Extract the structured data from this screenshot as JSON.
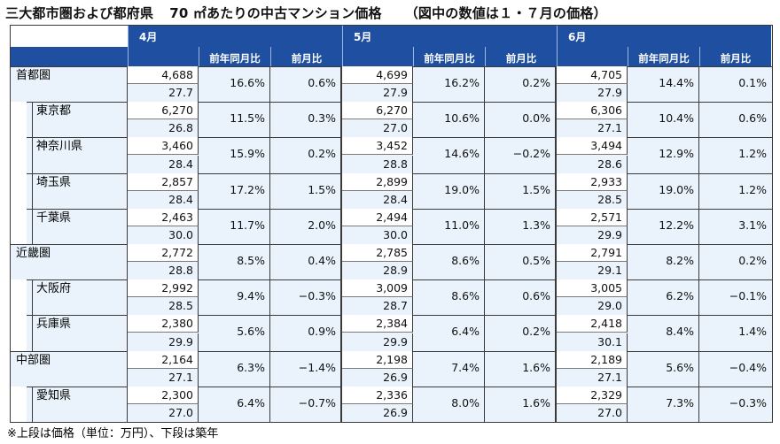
{
  "title": {
    "part1": "三大都市圏および都府県",
    "part2": "70 ㎡あたりの中古マンション価格",
    "part3": "（図中の数値は１・７月の価格）"
  },
  "months": [
    "4月",
    "5月",
    "6月"
  ],
  "subheaders": {
    "yoy": "前年同月比",
    "mom": "前月比"
  },
  "rows": [
    {
      "name": "首都圏",
      "level": 0,
      "months": [
        {
          "price": "4,688",
          "age": "27.7",
          "yoy": "16.6%",
          "mom": "0.6%"
        },
        {
          "price": "4,699",
          "age": "27.9",
          "yoy": "16.2%",
          "mom": "0.2%"
        },
        {
          "price": "4,705",
          "age": "27.9",
          "yoy": "14.4%",
          "mom": "0.1%"
        }
      ]
    },
    {
      "name": "東京都",
      "level": 1,
      "months": [
        {
          "price": "6,270",
          "age": "26.8",
          "yoy": "11.5%",
          "mom": "0.3%"
        },
        {
          "price": "6,270",
          "age": "27.0",
          "yoy": "10.6%",
          "mom": "0.0%"
        },
        {
          "price": "6,306",
          "age": "27.1",
          "yoy": "10.4%",
          "mom": "0.6%"
        }
      ]
    },
    {
      "name": "神奈川県",
      "level": 1,
      "months": [
        {
          "price": "3,460",
          "age": "28.4",
          "yoy": "15.9%",
          "mom": "0.2%"
        },
        {
          "price": "3,452",
          "age": "28.8",
          "yoy": "14.6%",
          "mom": "−0.2%"
        },
        {
          "price": "3,494",
          "age": "28.6",
          "yoy": "12.9%",
          "mom": "1.2%"
        }
      ]
    },
    {
      "name": "埼玉県",
      "level": 1,
      "months": [
        {
          "price": "2,857",
          "age": "28.4",
          "yoy": "17.2%",
          "mom": "1.5%"
        },
        {
          "price": "2,899",
          "age": "28.4",
          "yoy": "19.0%",
          "mom": "1.5%"
        },
        {
          "price": "2,933",
          "age": "28.5",
          "yoy": "19.0%",
          "mom": "1.2%"
        }
      ]
    },
    {
      "name": "千葉県",
      "level": 1,
      "months": [
        {
          "price": "2,463",
          "age": "30.0",
          "yoy": "11.7%",
          "mom": "2.0%"
        },
        {
          "price": "2,494",
          "age": "30.0",
          "yoy": "11.0%",
          "mom": "1.3%"
        },
        {
          "price": "2,571",
          "age": "29.9",
          "yoy": "12.2%",
          "mom": "3.1%"
        }
      ]
    },
    {
      "name": "近畿圏",
      "level": 0,
      "months": [
        {
          "price": "2,772",
          "age": "28.8",
          "yoy": "8.5%",
          "mom": "0.4%"
        },
        {
          "price": "2,785",
          "age": "28.9",
          "yoy": "8.6%",
          "mom": "0.5%"
        },
        {
          "price": "2,791",
          "age": "29.1",
          "yoy": "8.2%",
          "mom": "0.2%"
        }
      ]
    },
    {
      "name": "大阪府",
      "level": 1,
      "months": [
        {
          "price": "2,992",
          "age": "28.5",
          "yoy": "9.4%",
          "mom": "−0.3%"
        },
        {
          "price": "3,009",
          "age": "28.7",
          "yoy": "8.6%",
          "mom": "0.6%"
        },
        {
          "price": "3,005",
          "age": "29.0",
          "yoy": "6.2%",
          "mom": "−0.1%"
        }
      ]
    },
    {
      "name": "兵庫県",
      "level": 1,
      "months": [
        {
          "price": "2,380",
          "age": "29.9",
          "yoy": "5.6%",
          "mom": "0.9%"
        },
        {
          "price": "2,384",
          "age": "29.9",
          "yoy": "6.4%",
          "mom": "0.2%"
        },
        {
          "price": "2,418",
          "age": "30.1",
          "yoy": "8.4%",
          "mom": "1.4%"
        }
      ]
    },
    {
      "name": "中部圏",
      "level": 0,
      "months": [
        {
          "price": "2,164",
          "age": "27.1",
          "yoy": "6.3%",
          "mom": "−1.4%"
        },
        {
          "price": "2,198",
          "age": "26.9",
          "yoy": "7.4%",
          "mom": "1.6%"
        },
        {
          "price": "2,189",
          "age": "27.1",
          "yoy": "5.6%",
          "mom": "−0.4%"
        }
      ]
    },
    {
      "name": "愛知県",
      "level": 1,
      "months": [
        {
          "price": "2,300",
          "age": "27.0",
          "yoy": "6.4%",
          "mom": "−0.7%"
        },
        {
          "price": "2,336",
          "age": "26.9",
          "yoy": "8.0%",
          "mom": "1.6%"
        },
        {
          "price": "2,329",
          "age": "27.0",
          "yoy": "7.3%",
          "mom": "−0.3%"
        }
      ]
    }
  ],
  "colors": {
    "header_blue": "#1f4fa0",
    "row_tint": "#eaf3fb",
    "grid_line": "#3a3a3a"
  },
  "note": "※上段は価格（単位：万円）、下段は築年"
}
